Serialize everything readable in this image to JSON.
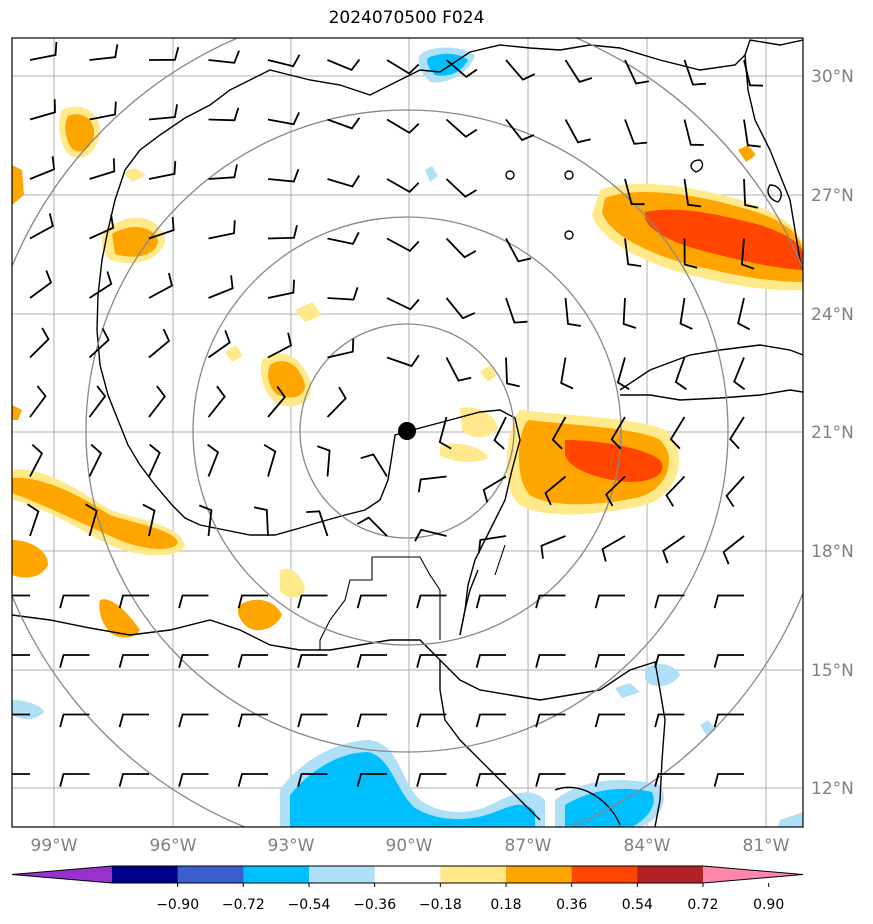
{
  "title": "2024070500 F024",
  "lon_labels": [
    "99°W",
    "96°W",
    "93°W",
    "90°W",
    "87°W",
    "84°W",
    "81°W"
  ],
  "lat_labels": [
    "30°N",
    "27°N",
    "24°N",
    "21°N",
    "18°N",
    "15°N",
    "12°N"
  ],
  "colorbar": {
    "tick_labels": [
      "−0.90",
      "−0.72",
      "−0.54",
      "−0.36",
      "−0.18",
      "0.18",
      "0.36",
      "0.54",
      "0.72",
      "0.90"
    ],
    "colors": [
      "#9932cc",
      "#00008b",
      "#3a5fcd",
      "#00bfff",
      "#b0e0f8",
      "#ffffff",
      "#ffe98a",
      "#ffa500",
      "#ff4500",
      "#b22222",
      "#ff88aa"
    ]
  },
  "colors": {
    "grid": "#b0b0b0",
    "range_rings": "#888888",
    "coastline": "#000000",
    "axis_label": "#808080",
    "center_marker": "#000000"
  },
  "storm_center": {
    "lon": "90°W",
    "lat": "21°N"
  }
}
